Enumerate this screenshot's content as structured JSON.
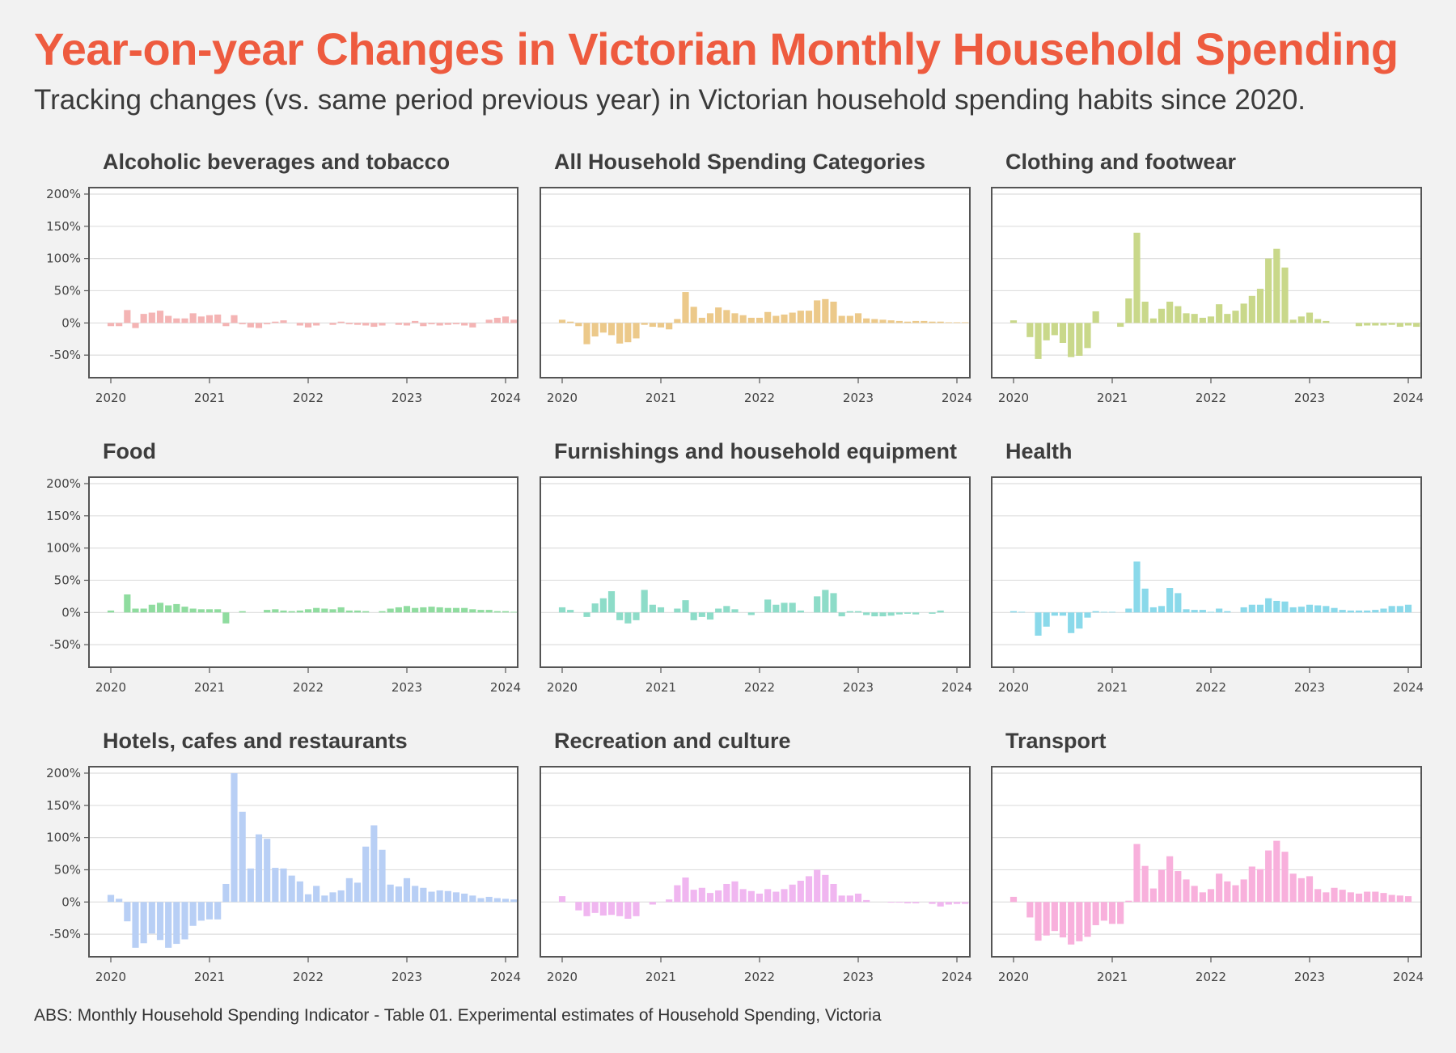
{
  "title": "Year-on-year Changes in Victorian Monthly Household Spending",
  "subtitle": "Tracking changes (vs. same period previous year) in Victorian household spending habits since 2020.",
  "caption": "ABS: Monthly Household Spending Indicator - Table 01. Experimental estimates of Household Spending, Victoria",
  "chart_data": [
    {
      "type": "bar",
      "title": "Alcoholic beverages and tobacco",
      "color": "#f4b4b4",
      "x_ticks": [
        "2020",
        "2021",
        "2022",
        "2023",
        "2024"
      ],
      "y_ticks": [
        "200%",
        "150%",
        "100%",
        "50%",
        "0%",
        "-50%"
      ],
      "ylim": [
        -85,
        210
      ],
      "x_start": "2020-01",
      "values": [
        -5,
        -5,
        20,
        -8,
        14,
        16,
        19,
        11,
        7,
        7,
        15,
        10,
        12,
        13,
        -5,
        12,
        -2,
        -7,
        -8,
        -2,
        2,
        4,
        0,
        -4,
        -7,
        -4,
        0,
        -3,
        2,
        -2,
        -3,
        -4,
        -6,
        -4,
        0,
        -3,
        -4,
        3,
        -5,
        -2,
        -4,
        -3,
        -2,
        -4,
        -7,
        0,
        5,
        8,
        10,
        5
      ]
    },
    {
      "type": "bar",
      "title": "All Household Spending Categories",
      "color": "#ecc98a",
      "x_ticks": [
        "2020",
        "2021",
        "2022",
        "2023",
        "2024"
      ],
      "y_ticks": [
        "200%",
        "150%",
        "100%",
        "50%",
        "0%",
        "-50%"
      ],
      "ylim": [
        -85,
        210
      ],
      "x_start": "2020-01",
      "values": [
        5,
        2,
        -5,
        -33,
        -21,
        -15,
        -19,
        -32,
        -30,
        -24,
        -3,
        -6,
        -7,
        -10,
        6,
        48,
        25,
        8,
        15,
        24,
        20,
        15,
        12,
        8,
        8,
        17,
        11,
        13,
        16,
        19,
        19,
        35,
        37,
        33,
        11,
        11,
        15,
        7,
        6,
        5,
        4,
        3,
        2,
        3,
        3,
        2,
        2,
        1,
        1,
        1
      ]
    },
    {
      "type": "bar",
      "title": "Clothing and footwear",
      "color": "#c9d88a",
      "x_ticks": [
        "2020",
        "2021",
        "2022",
        "2023",
        "2024"
      ],
      "y_ticks": [
        "200%",
        "150%",
        "100%",
        "50%",
        "0%",
        "-50%"
      ],
      "ylim": [
        -85,
        210
      ],
      "x_start": "2020-01",
      "values": [
        4,
        0,
        -22,
        -56,
        -27,
        -19,
        -31,
        -53,
        -51,
        -39,
        18,
        0,
        0,
        -6,
        38,
        140,
        33,
        7,
        22,
        33,
        26,
        15,
        14,
        8,
        10,
        29,
        14,
        19,
        30,
        42,
        53,
        100,
        115,
        86,
        5,
        10,
        16,
        6,
        3,
        0,
        0,
        0,
        -5,
        -4,
        -4,
        -4,
        -3,
        -6,
        -4,
        -6
      ]
    },
    {
      "type": "bar",
      "title": "Food",
      "color": "#8fdc9f",
      "x_ticks": [
        "2020",
        "2021",
        "2022",
        "2023",
        "2024"
      ],
      "y_ticks": [
        "200%",
        "150%",
        "100%",
        "50%",
        "0%",
        "-50%"
      ],
      "ylim": [
        -85,
        210
      ],
      "x_start": "2020-01",
      "values": [
        3,
        0,
        28,
        6,
        6,
        12,
        15,
        11,
        13,
        9,
        6,
        5,
        5,
        5,
        -17,
        0,
        2,
        0,
        0,
        4,
        5,
        3,
        2,
        3,
        5,
        7,
        6,
        5,
        8,
        3,
        3,
        2,
        0,
        2,
        6,
        8,
        10,
        7,
        8,
        9,
        8,
        7,
        7,
        7,
        5,
        4,
        4,
        2,
        2,
        1
      ]
    },
    {
      "type": "bar",
      "title": "Furnishings and household equipment",
      "color": "#8ddcc8",
      "x_ticks": [
        "2020",
        "2021",
        "2022",
        "2023",
        "2024"
      ],
      "y_ticks": [
        "200%",
        "150%",
        "100%",
        "50%",
        "0%",
        "-50%"
      ],
      "ylim": [
        -85,
        210
      ],
      "x_start": "2020-01",
      "values": [
        8,
        4,
        0,
        -7,
        14,
        22,
        33,
        -12,
        -17,
        -12,
        35,
        12,
        8,
        0,
        6,
        19,
        -12,
        -7,
        -11,
        6,
        10,
        5,
        0,
        -4,
        0,
        20,
        12,
        15,
        15,
        3,
        0,
        25,
        35,
        30,
        -6,
        2,
        2,
        -4,
        -6,
        -6,
        -5,
        -3,
        -2,
        -3,
        0,
        -2,
        3,
        0,
        0,
        0
      ]
    },
    {
      "type": "bar",
      "title": "Health",
      "color": "#8ad9ea",
      "x_ticks": [
        "2020",
        "2021",
        "2022",
        "2023",
        "2024"
      ],
      "y_ticks": [
        "200%",
        "150%",
        "100%",
        "50%",
        "0%",
        "-50%"
      ],
      "ylim": [
        -85,
        210
      ],
      "x_start": "2020-01",
      "values": [
        2,
        1,
        0,
        -36,
        -22,
        -5,
        -5,
        -32,
        -25,
        -8,
        2,
        1,
        1,
        0,
        6,
        79,
        37,
        8,
        10,
        38,
        30,
        5,
        4,
        4,
        1,
        6,
        2,
        0,
        8,
        12,
        12,
        22,
        18,
        17,
        8,
        9,
        12,
        11,
        10,
        7,
        4,
        3,
        3,
        3,
        4,
        6,
        10,
        10,
        12,
        0
      ]
    },
    {
      "type": "bar",
      "title": "Hotels, cafes and restaurants",
      "color": "#b8cff5",
      "x_ticks": [
        "2020",
        "2021",
        "2022",
        "2023",
        "2024"
      ],
      "y_ticks": [
        "200%",
        "150%",
        "100%",
        "50%",
        "0%",
        "-50%"
      ],
      "ylim": [
        -85,
        210
      ],
      "x_start": "2020-01",
      "values": [
        11,
        5,
        -30,
        -71,
        -64,
        -49,
        -59,
        -71,
        -65,
        -58,
        -37,
        -29,
        -27,
        -27,
        28,
        200,
        140,
        52,
        105,
        98,
        53,
        52,
        41,
        32,
        12,
        25,
        10,
        15,
        18,
        37,
        30,
        86,
        119,
        81,
        27,
        24,
        37,
        25,
        22,
        16,
        18,
        17,
        15,
        13,
        10,
        6,
        8,
        6,
        5,
        4
      ]
    },
    {
      "type": "bar",
      "title": "Recreation and culture",
      "color": "#f0b6f0",
      "x_ticks": [
        "2020",
        "2021",
        "2022",
        "2023",
        "2024"
      ],
      "y_ticks": [
        "200%",
        "150%",
        "100%",
        "50%",
        "0%",
        "-50%"
      ],
      "ylim": [
        -85,
        210
      ],
      "x_start": "2020-01",
      "values": [
        9,
        0,
        -13,
        -22,
        -17,
        -21,
        -20,
        -22,
        -26,
        -22,
        0,
        -4,
        0,
        4,
        26,
        38,
        19,
        22,
        14,
        18,
        28,
        32,
        20,
        17,
        13,
        20,
        16,
        20,
        27,
        33,
        40,
        50,
        42,
        28,
        10,
        10,
        13,
        3,
        0,
        0,
        -1,
        -1,
        -2,
        -2,
        0,
        -3,
        -7,
        -4,
        -3,
        -3
      ]
    },
    {
      "type": "bar",
      "title": "Transport",
      "color": "#f8b0dc",
      "x_ticks": [
        "2020",
        "2021",
        "2022",
        "2023",
        "2024"
      ],
      "y_ticks": [
        "200%",
        "150%",
        "100%",
        "50%",
        "0%",
        "-50%"
      ],
      "ylim": [
        -85,
        210
      ],
      "x_start": "2020-01",
      "values": [
        8,
        0,
        -24,
        -60,
        -52,
        -45,
        -55,
        -66,
        -61,
        -54,
        -36,
        -29,
        -34,
        -34,
        2,
        90,
        56,
        21,
        50,
        71,
        48,
        35,
        25,
        15,
        20,
        44,
        32,
        26,
        35,
        55,
        51,
        80,
        95,
        78,
        44,
        37,
        40,
        20,
        15,
        22,
        19,
        15,
        13,
        16,
        16,
        14,
        11,
        10,
        9,
        0
      ]
    }
  ]
}
